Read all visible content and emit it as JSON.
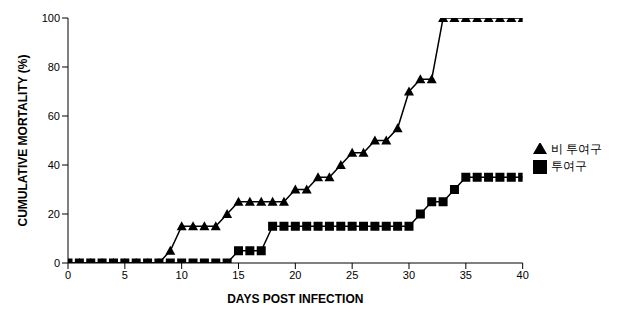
{
  "chart_data": {
    "type": "line",
    "x_label": "DAYS POST INFECTION",
    "y_label": "CUMULATIVE MORTALITY (%)",
    "x": [
      0,
      1,
      2,
      3,
      4,
      5,
      6,
      7,
      8,
      9,
      10,
      11,
      12,
      13,
      14,
      15,
      16,
      17,
      18,
      19,
      20,
      21,
      22,
      23,
      24,
      25,
      26,
      27,
      28,
      29,
      30,
      31,
      32,
      33,
      34,
      35,
      36,
      37,
      38,
      39,
      40
    ],
    "xlim": [
      0,
      40
    ],
    "xticks": [
      0,
      5,
      10,
      15,
      20,
      25,
      30,
      35,
      40
    ],
    "ylim": [
      0,
      100
    ],
    "yticks": [
      0,
      20,
      40,
      60,
      80,
      100
    ],
    "grid": false,
    "legend": "right",
    "series": [
      {
        "name": "투여구",
        "color": "#000000",
        "marker": "square",
        "values": [
          0,
          0,
          0,
          0,
          0,
          0,
          0,
          0,
          0,
          0,
          0,
          0,
          0,
          0,
          0,
          5,
          5,
          5,
          15,
          15,
          15,
          15,
          15,
          15,
          15,
          15,
          15,
          15,
          15,
          15,
          15,
          20,
          25,
          25,
          30,
          35,
          35,
          35,
          35,
          35,
          35
        ]
      },
      {
        "name": "비 투여구",
        "color": "#000000",
        "marker": "triangle",
        "values": [
          0,
          0,
          0,
          0,
          0,
          0,
          0,
          0,
          0,
          5,
          15,
          15,
          15,
          15,
          20,
          25,
          25,
          25,
          25,
          25,
          30,
          30,
          35,
          35,
          40,
          45,
          45,
          50,
          50,
          55,
          70,
          75,
          75,
          100,
          100,
          100,
          100,
          100,
          100,
          100,
          100
        ]
      }
    ]
  }
}
